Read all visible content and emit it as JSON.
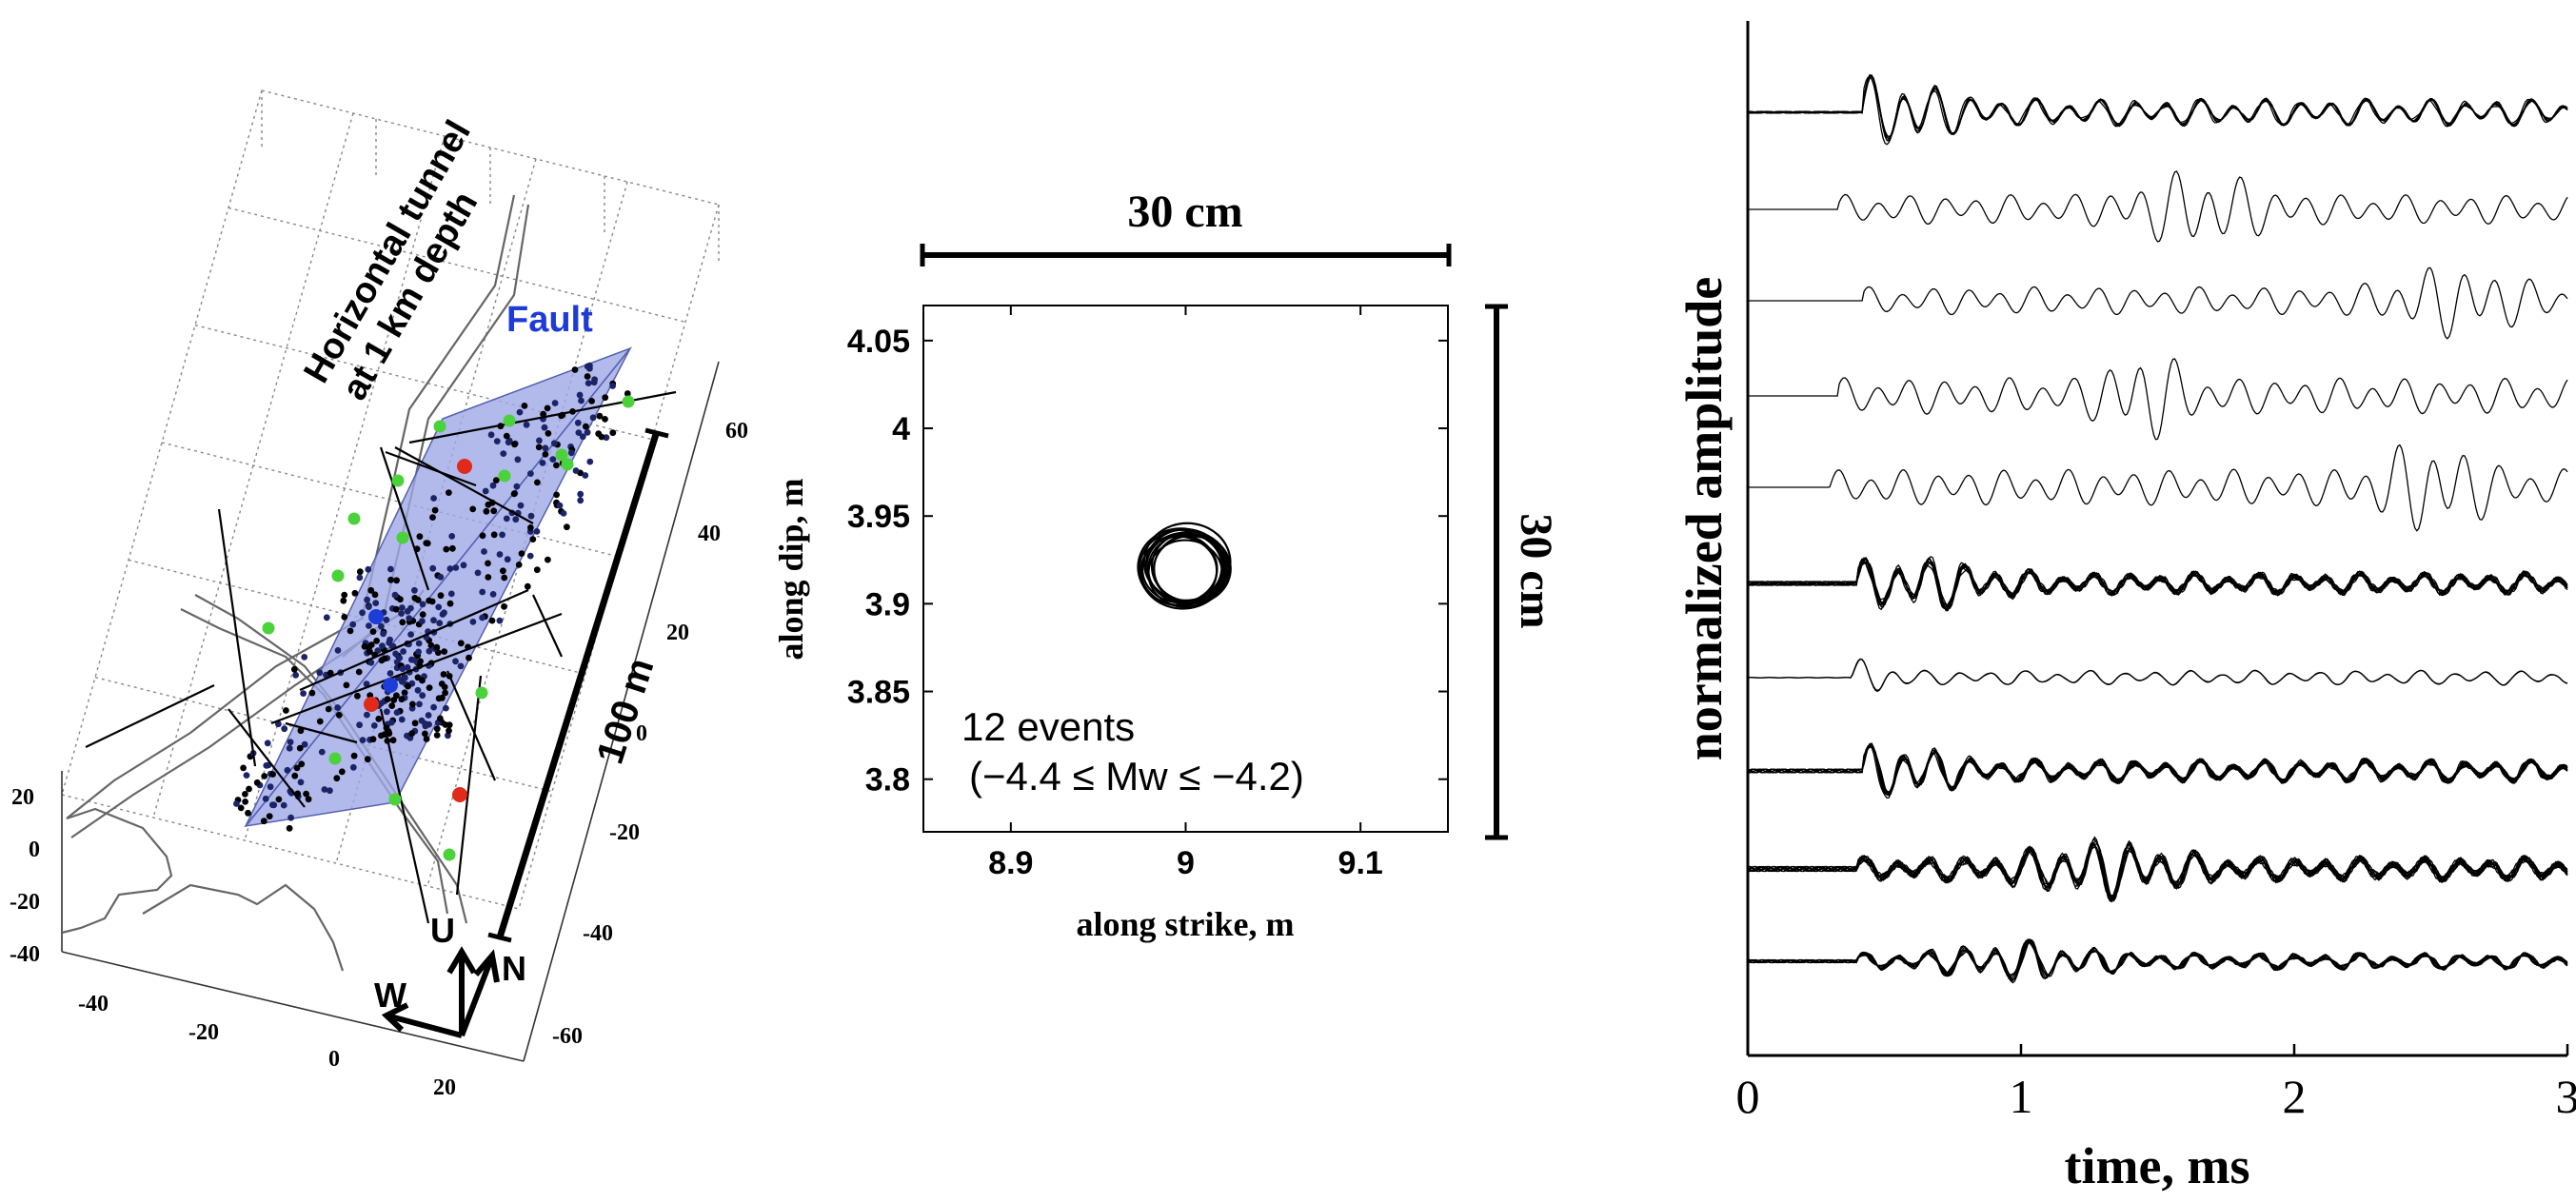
{
  "colors": {
    "fault_fill": "#9fa8e6",
    "fault_label": "#1f3bd6",
    "dot_black": "#000000",
    "dot_navy": "#1b2466",
    "station_green": "#4bd23a",
    "station_red": "#e02a1a",
    "station_blue": "#1e3cd8",
    "grid": "#888888",
    "tunnel": "#666666"
  },
  "panel_a": {
    "tunnel_label_line1": "Horizontal tunnel",
    "tunnel_label_line2": "at 1 km depth",
    "fault_label": "Fault",
    "scale_label": "100 m",
    "compass": {
      "up": "U",
      "west": "W",
      "north": "N"
    },
    "axis_front_ticks": [
      "-40",
      "-20",
      "0",
      "20"
    ],
    "axis_right_ticks": [
      "60",
      "40",
      "20",
      "0",
      "-20",
      "-40",
      "-60"
    ],
    "axis_left_ticks": [
      "20",
      "0",
      "-20",
      "-40"
    ],
    "scatter_points": 420
  },
  "panel_b": {
    "scale_top": "30 cm",
    "scale_right": "30 cm",
    "annotation_line1": "12 events",
    "annotation_line2": "(−4.4 ≤ Mw ≤ −4.2)"
  },
  "panel_c": {
    "trace_count": 10
  },
  "chart_data": [
    {
      "type": "scatter",
      "title": "",
      "xlabel": "along strike, m",
      "ylabel": "along dip, m",
      "xlim": [
        8.85,
        9.15
      ],
      "ylim": [
        3.77,
        4.07
      ],
      "xticks": [
        "8.9",
        "9",
        "9.1"
      ],
      "yticks": [
        "4.05",
        "4",
        "3.95",
        "3.9",
        "3.85",
        "3.8"
      ],
      "center": [
        9.0,
        3.92
      ],
      "events": 12,
      "source_radius_m": 0.022
    },
    {
      "type": "line",
      "title": "",
      "xlabel": "time, ms",
      "ylabel": "normalized amplitude",
      "xlim": [
        0,
        3
      ],
      "xticks": [
        "0",
        "1",
        "2",
        "3"
      ],
      "series_count": 10,
      "first_arrival_ms": [
        0.42,
        0.33,
        0.42,
        0.33,
        0.3,
        0.4,
        0.38,
        0.42,
        0.4,
        0.4
      ]
    }
  ]
}
